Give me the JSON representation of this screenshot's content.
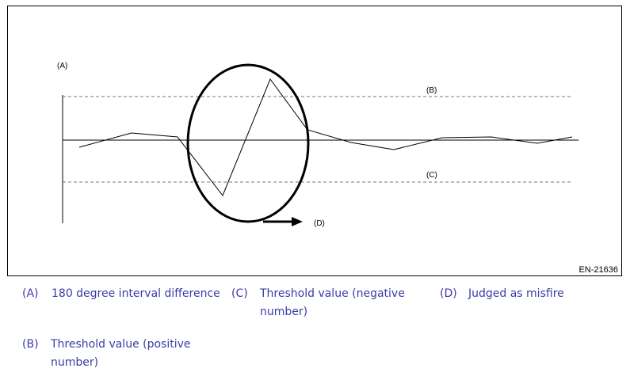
{
  "figure": {
    "labels": {
      "a": "(A)",
      "b": "(B)",
      "c": "(C)",
      "d": "(D)"
    },
    "id": "EN-21636"
  },
  "legend": [
    {
      "key": "(A)",
      "text": "180 degree interval difference"
    },
    {
      "key": "(C)",
      "text": "Threshold value (negative number)"
    },
    {
      "key": "(D)",
      "text": "Judged as misfire"
    },
    {
      "key": "(B)",
      "text": "Threshold value (positive number)"
    }
  ]
}
